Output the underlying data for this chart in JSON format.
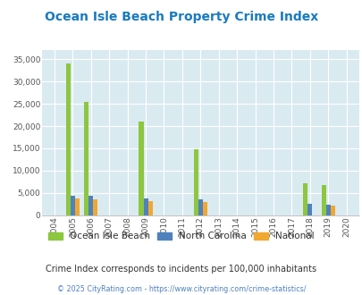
{
  "title": "Ocean Isle Beach Property Crime Index",
  "years": [
    2004,
    2005,
    2006,
    2007,
    2008,
    2009,
    2010,
    2011,
    2012,
    2013,
    2014,
    2015,
    2016,
    2017,
    2018,
    2019,
    2020
  ],
  "ocean_isle_beach": [
    0,
    34000,
    25500,
    0,
    0,
    21000,
    0,
    0,
    14800,
    0,
    0,
    0,
    0,
    0,
    7200,
    6800,
    0
  ],
  "north_carolina": [
    0,
    4300,
    4400,
    0,
    0,
    3800,
    0,
    0,
    3500,
    0,
    0,
    0,
    0,
    0,
    2600,
    2400,
    0
  ],
  "national": [
    0,
    3700,
    3600,
    0,
    0,
    3100,
    0,
    0,
    3000,
    0,
    0,
    0,
    0,
    0,
    0,
    2200,
    0
  ],
  "color_oib": "#8dc63f",
  "color_nc": "#4f81bd",
  "color_nat": "#f0a830",
  "bg_color": "#daeaf1",
  "title_color": "#1a7abf",
  "subtitle": "Crime Index corresponds to incidents per 100,000 inhabitants",
  "subtitle_color": "#333333",
  "footer": "© 2025 CityRating.com - https://www.cityrating.com/crime-statistics/",
  "footer_color": "#4f81bd",
  "ylim": [
    0,
    37000
  ],
  "yticks": [
    0,
    5000,
    10000,
    15000,
    20000,
    25000,
    30000,
    35000
  ],
  "bar_width": 0.25
}
